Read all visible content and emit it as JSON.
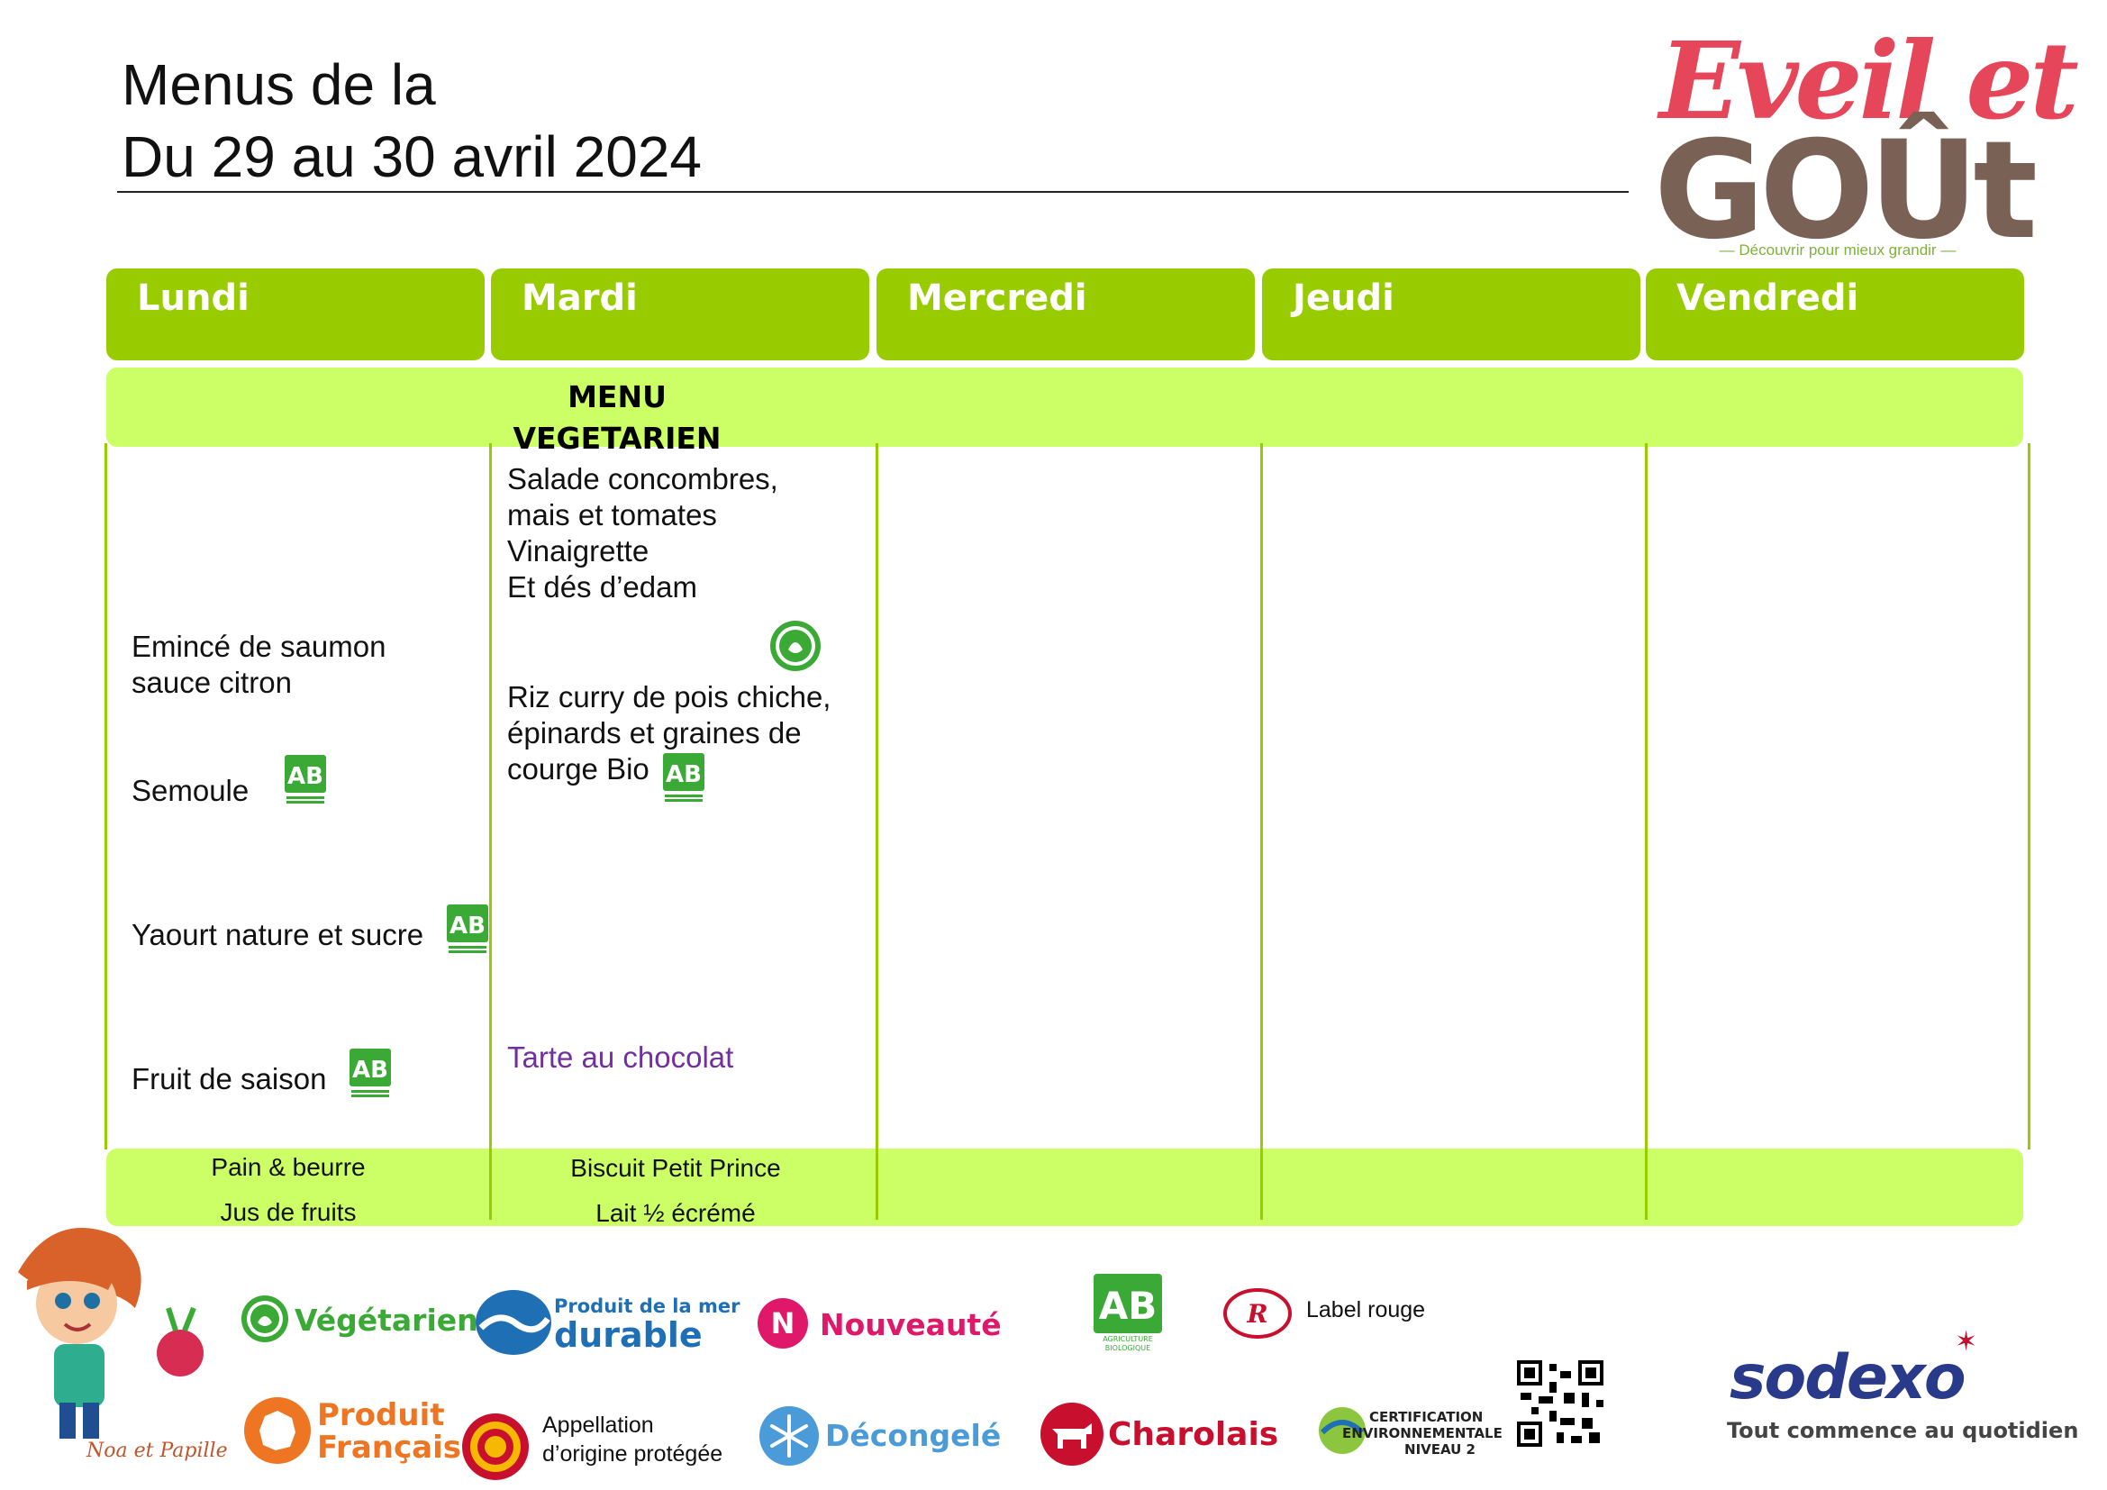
{
  "header": {
    "title_line1": "Menus de la",
    "title_line2": "Du 29 au 30 avril 2024"
  },
  "brand": {
    "name_top": "Eveil et",
    "name_bottom": "GOÛt",
    "tagline": "Découvrir pour mieux grandir"
  },
  "days": [
    "Lundi",
    "Mardi",
    "Mercredi",
    "Jeudi",
    "Vendredi"
  ],
  "menu": {
    "lundi": {
      "plat": "Emincé de saumon\nsauce citron",
      "accompagnement": "Semoule",
      "laitage": "Yaourt nature et sucre",
      "dessert": "Fruit de saison"
    },
    "mardi": {
      "theme": "MENU\nVEGETARIEN",
      "entree": "Salade concombres,\nmais et tomates\nVinaigrette\n Et dés d’edam",
      "plat": "Riz curry de pois chiche,\népinards et graines de\ncourge Bio",
      "dessert": "Tarte au chocolat"
    }
  },
  "snacks": {
    "lundi": {
      "line1": "Pain & beurre",
      "line2": "Jus de fruits"
    },
    "mardi": {
      "line1": "Biscuit Petit Prince",
      "line2": "Lait ½ écrémé"
    }
  },
  "legend": {
    "vegetarien": "Végétarien",
    "mer_top": "Produit de la mer",
    "mer_bottom": "durable",
    "nouveaute": "Nouveauté",
    "label_rouge": "Label rouge",
    "produit_line1": "Produit",
    "produit_line2": "Français",
    "aop": "Appellation\nd’origine protégée",
    "decongele": "Décongelé",
    "charolais": "Charolais",
    "cert_line1": "CERTIFICATION",
    "cert_line2": "ENVIRONNEMENTALE",
    "cert_line3": "NIVEAU 2",
    "ab_line1": "AGRICULTURE",
    "ab_line2": "BIOLOGIQUE",
    "mascot": "Noa et Papille"
  },
  "sodexo": {
    "name": "sodexo",
    "tagline": "Tout commence au quotidien"
  },
  "colors": {
    "header_green": "#99cc00",
    "band_green": "#ccff66",
    "purple": "#7030a0",
    "bio_green": "#3aa935"
  }
}
